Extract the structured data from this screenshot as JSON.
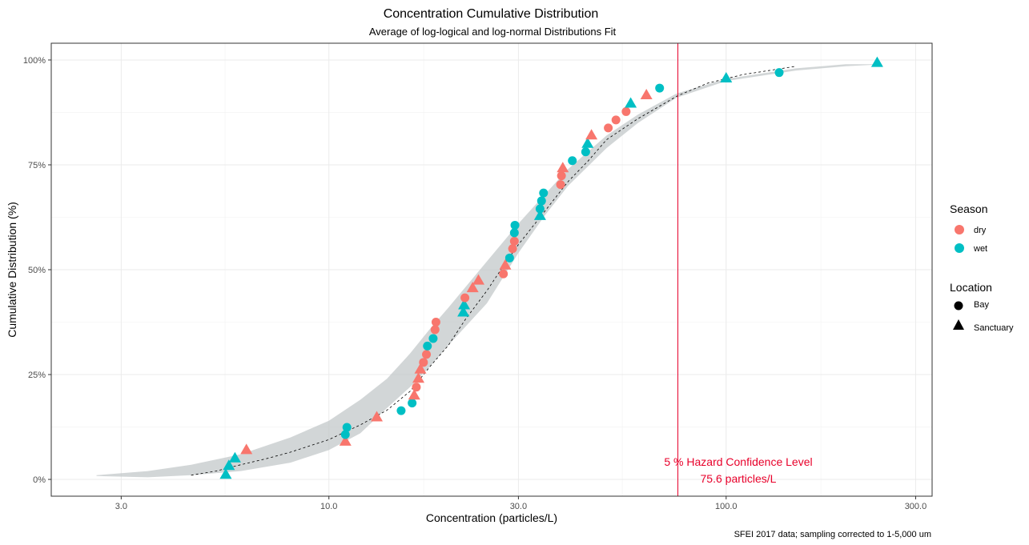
{
  "chart_data": {
    "type": "scatter",
    "title": "Concentration Cumulative Distribution",
    "subtitle": "Average of log-logical and log-normal Distributions Fit",
    "xlabel": "Concentration (particles/L)",
    "ylabel": "Cumulative Distribution (%)",
    "x_scale": "log10",
    "xlim": [
      2.0,
      330
    ],
    "ylim": [
      -0.04,
      1.04
    ],
    "x_ticks": [
      3,
      10,
      30,
      100,
      300
    ],
    "x_tick_labels": [
      "3.0",
      "10.0",
      "30.0",
      "100.0",
      "300.0"
    ],
    "y_ticks": [
      0,
      0.25,
      0.5,
      0.75,
      1.0
    ],
    "y_tick_labels": [
      "0%",
      "25%",
      "50%",
      "75%",
      "100%"
    ],
    "grid": true,
    "caption": "SFEI 2017 data; sampling corrected to 1-5,000 um",
    "colors": {
      "dry": "#f8766d",
      "wet": "#00bfc4",
      "band": "#bfc4c6",
      "hazard": "#e8002a"
    },
    "legend": {
      "position": "right",
      "season_title": "Season",
      "season_items": [
        {
          "label": "dry",
          "key": "dry"
        },
        {
          "label": "wet",
          "key": "wet"
        }
      ],
      "location_title": "Location",
      "location_items": [
        {
          "label": "Bay",
          "shape": "circle"
        },
        {
          "label": "Sanctuary",
          "shape": "triangle"
        }
      ]
    },
    "hazard": {
      "x": 75.6,
      "label_line1": "5 % Hazard Confidence Level",
      "label_line2": "75.6 particles/L"
    },
    "fit_curve": [
      [
        4.5,
        0.01
      ],
      [
        5.2,
        0.02
      ],
      [
        6.0,
        0.035
      ],
      [
        7.0,
        0.05
      ],
      [
        8.0,
        0.065
      ],
      [
        10.0,
        0.095
      ],
      [
        12.0,
        0.13
      ],
      [
        14.0,
        0.165
      ],
      [
        16.0,
        0.21
      ],
      [
        18.0,
        0.27
      ],
      [
        20.0,
        0.32
      ],
      [
        22.0,
        0.38
      ],
      [
        25.0,
        0.45
      ],
      [
        28.0,
        0.52
      ],
      [
        30.0,
        0.56
      ],
      [
        35.0,
        0.64
      ],
      [
        40.0,
        0.71
      ],
      [
        45.0,
        0.76
      ],
      [
        50.0,
        0.81
      ],
      [
        60.0,
        0.86
      ],
      [
        75.6,
        0.915
      ],
      [
        90.0,
        0.945
      ],
      [
        110.0,
        0.965
      ],
      [
        150.0,
        0.985
      ]
    ],
    "band_upper": [
      [
        2.6,
        0.01
      ],
      [
        3.5,
        0.02
      ],
      [
        4.5,
        0.035
      ],
      [
        6.0,
        0.06
      ],
      [
        8.0,
        0.1
      ],
      [
        10.0,
        0.14
      ],
      [
        12.0,
        0.19
      ],
      [
        14.0,
        0.24
      ],
      [
        16.0,
        0.3
      ],
      [
        18.0,
        0.36
      ],
      [
        20.0,
        0.41
      ],
      [
        25.0,
        0.52
      ],
      [
        30.0,
        0.61
      ],
      [
        35.0,
        0.68
      ],
      [
        40.0,
        0.74
      ],
      [
        50.0,
        0.82
      ],
      [
        60.0,
        0.87
      ],
      [
        75.0,
        0.92
      ],
      [
        100.0,
        0.955
      ],
      [
        150.0,
        0.98
      ],
      [
        200.0,
        0.99
      ],
      [
        250.0,
        0.99
      ]
    ],
    "band_lower": [
      [
        250.0,
        0.99
      ],
      [
        200.0,
        0.985
      ],
      [
        150.0,
        0.975
      ],
      [
        100.0,
        0.95
      ],
      [
        75.0,
        0.91
      ],
      [
        60.0,
        0.85
      ],
      [
        50.0,
        0.79
      ],
      [
        40.0,
        0.7
      ],
      [
        35.0,
        0.63
      ],
      [
        30.0,
        0.54
      ],
      [
        25.0,
        0.42
      ],
      [
        20.0,
        0.32
      ],
      [
        18.0,
        0.27
      ],
      [
        16.0,
        0.22
      ],
      [
        14.0,
        0.17
      ],
      [
        12.0,
        0.11
      ],
      [
        10.0,
        0.07
      ],
      [
        8.0,
        0.04
      ],
      [
        6.0,
        0.02
      ],
      [
        4.5,
        0.01
      ],
      [
        3.5,
        0.005
      ],
      [
        2.6,
        0.008
      ]
    ],
    "points": [
      {
        "x": 5.5,
        "y": 0.011,
        "season": "wet",
        "location": "Sanctuary"
      },
      {
        "x": 5.6,
        "y": 0.032,
        "season": "wet",
        "location": "Sanctuary"
      },
      {
        "x": 5.8,
        "y": 0.05,
        "season": "wet",
        "location": "Sanctuary"
      },
      {
        "x": 6.2,
        "y": 0.07,
        "season": "dry",
        "location": "Sanctuary"
      },
      {
        "x": 11.0,
        "y": 0.09,
        "season": "dry",
        "location": "Sanctuary"
      },
      {
        "x": 11.0,
        "y": 0.107,
        "season": "wet",
        "location": "Bay"
      },
      {
        "x": 11.1,
        "y": 0.124,
        "season": "wet",
        "location": "Bay"
      },
      {
        "x": 13.2,
        "y": 0.148,
        "season": "dry",
        "location": "Sanctuary"
      },
      {
        "x": 15.2,
        "y": 0.164,
        "season": "wet",
        "location": "Bay"
      },
      {
        "x": 16.2,
        "y": 0.182,
        "season": "wet",
        "location": "Bay"
      },
      {
        "x": 16.4,
        "y": 0.2,
        "season": "dry",
        "location": "Sanctuary"
      },
      {
        "x": 16.6,
        "y": 0.22,
        "season": "dry",
        "location": "Bay"
      },
      {
        "x": 16.8,
        "y": 0.24,
        "season": "dry",
        "location": "Sanctuary"
      },
      {
        "x": 17.0,
        "y": 0.262,
        "season": "dry",
        "location": "Sanctuary"
      },
      {
        "x": 17.3,
        "y": 0.279,
        "season": "dry",
        "location": "Bay"
      },
      {
        "x": 17.6,
        "y": 0.298,
        "season": "dry",
        "location": "Bay"
      },
      {
        "x": 17.7,
        "y": 0.318,
        "season": "wet",
        "location": "Bay"
      },
      {
        "x": 18.3,
        "y": 0.336,
        "season": "wet",
        "location": "Bay"
      },
      {
        "x": 18.5,
        "y": 0.357,
        "season": "dry",
        "location": "Bay"
      },
      {
        "x": 18.6,
        "y": 0.375,
        "season": "dry",
        "location": "Bay"
      },
      {
        "x": 21.8,
        "y": 0.398,
        "season": "wet",
        "location": "Sanctuary"
      },
      {
        "x": 21.9,
        "y": 0.415,
        "season": "wet",
        "location": "Sanctuary"
      },
      {
        "x": 22.0,
        "y": 0.433,
        "season": "dry",
        "location": "Bay"
      },
      {
        "x": 23.0,
        "y": 0.456,
        "season": "dry",
        "location": "Sanctuary"
      },
      {
        "x": 23.8,
        "y": 0.474,
        "season": "dry",
        "location": "Sanctuary"
      },
      {
        "x": 27.5,
        "y": 0.49,
        "season": "dry",
        "location": "Bay"
      },
      {
        "x": 27.8,
        "y": 0.51,
        "season": "dry",
        "location": "Sanctuary"
      },
      {
        "x": 28.5,
        "y": 0.528,
        "season": "wet",
        "location": "Bay"
      },
      {
        "x": 29.0,
        "y": 0.55,
        "season": "dry",
        "location": "Bay"
      },
      {
        "x": 29.3,
        "y": 0.568,
        "season": "dry",
        "location": "Bay"
      },
      {
        "x": 29.3,
        "y": 0.588,
        "season": "wet",
        "location": "Bay"
      },
      {
        "x": 29.4,
        "y": 0.606,
        "season": "wet",
        "location": "Bay"
      },
      {
        "x": 34.0,
        "y": 0.628,
        "season": "wet",
        "location": "Sanctuary"
      },
      {
        "x": 34.0,
        "y": 0.645,
        "season": "wet",
        "location": "Bay"
      },
      {
        "x": 34.3,
        "y": 0.664,
        "season": "wet",
        "location": "Bay"
      },
      {
        "x": 34.7,
        "y": 0.683,
        "season": "wet",
        "location": "Bay"
      },
      {
        "x": 38.3,
        "y": 0.703,
        "season": "dry",
        "location": "Bay"
      },
      {
        "x": 38.5,
        "y": 0.724,
        "season": "dry",
        "location": "Bay"
      },
      {
        "x": 38.8,
        "y": 0.742,
        "season": "dry",
        "location": "Sanctuary"
      },
      {
        "x": 41.0,
        "y": 0.76,
        "season": "wet",
        "location": "Bay"
      },
      {
        "x": 44.3,
        "y": 0.781,
        "season": "wet",
        "location": "Bay"
      },
      {
        "x": 44.8,
        "y": 0.8,
        "season": "wet",
        "location": "Sanctuary"
      },
      {
        "x": 45.8,
        "y": 0.82,
        "season": "dry",
        "location": "Sanctuary"
      },
      {
        "x": 50.5,
        "y": 0.838,
        "season": "dry",
        "location": "Bay"
      },
      {
        "x": 52.8,
        "y": 0.857,
        "season": "dry",
        "location": "Bay"
      },
      {
        "x": 56.0,
        "y": 0.877,
        "season": "dry",
        "location": "Bay"
      },
      {
        "x": 57.5,
        "y": 0.896,
        "season": "wet",
        "location": "Sanctuary"
      },
      {
        "x": 63.0,
        "y": 0.916,
        "season": "dry",
        "location": "Sanctuary"
      },
      {
        "x": 68.0,
        "y": 0.933,
        "season": "wet",
        "location": "Bay"
      },
      {
        "x": 100.0,
        "y": 0.956,
        "season": "wet",
        "location": "Sanctuary"
      },
      {
        "x": 136.0,
        "y": 0.97,
        "season": "wet",
        "location": "Bay"
      },
      {
        "x": 240.0,
        "y": 0.993,
        "season": "wet",
        "location": "Sanctuary"
      }
    ]
  }
}
